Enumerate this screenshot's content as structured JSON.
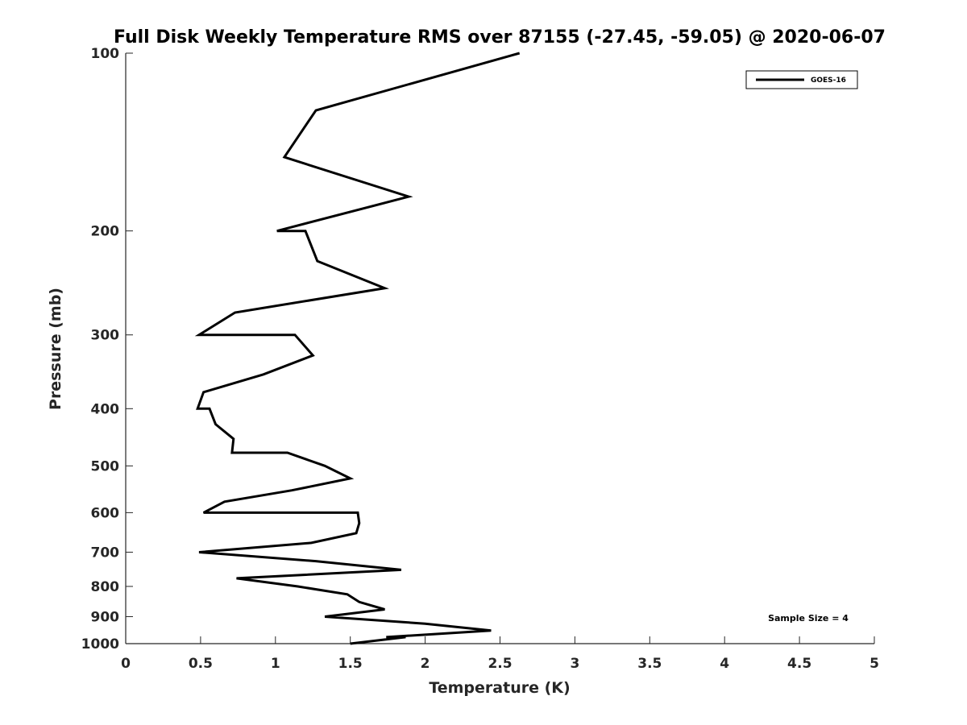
{
  "chart_data": {
    "type": "line",
    "title": "Full Disk Weekly Temperature RMS over 87155 (-27.45, -59.05) @ 2020-06-07",
    "xlabel": "Temperature (K)",
    "ylabel": "Pressure (mb)",
    "xlim": [
      0,
      5
    ],
    "ylim": [
      100,
      1000
    ],
    "y_scale": "log",
    "y_reversed": true,
    "x_ticks": [
      "0",
      "0.5",
      "1",
      "1.5",
      "2",
      "2.5",
      "3",
      "3.5",
      "4",
      "4.5",
      "5"
    ],
    "x_tick_values": [
      0,
      0.5,
      1,
      1.5,
      2,
      2.5,
      3,
      3.5,
      4,
      4.5,
      5
    ],
    "y_ticks": [
      "100",
      "200",
      "300",
      "400",
      "500",
      "600",
      "700",
      "800",
      "900",
      "1000"
    ],
    "y_tick_values": [
      100,
      200,
      300,
      400,
      500,
      600,
      700,
      800,
      900,
      1000
    ],
    "grid": false,
    "legend_position": "top-right",
    "annotation": "Sample Size = 4",
    "series": [
      {
        "name": "GOES-16",
        "color": "#000000",
        "points": [
          [
            2.63,
            100
          ],
          [
            1.27,
            125
          ],
          [
            1.06,
            150
          ],
          [
            1.89,
            175
          ],
          [
            1.01,
            200
          ],
          [
            1.2,
            200
          ],
          [
            1.28,
            225
          ],
          [
            1.73,
            250
          ],
          [
            0.73,
            275
          ],
          [
            0.49,
            300
          ],
          [
            1.13,
            300
          ],
          [
            1.25,
            325
          ],
          [
            0.92,
            350
          ],
          [
            0.52,
            375
          ],
          [
            0.48,
            400
          ],
          [
            0.56,
            400
          ],
          [
            0.6,
            425
          ],
          [
            0.72,
            450
          ],
          [
            0.71,
            475
          ],
          [
            1.08,
            475
          ],
          [
            1.33,
            500
          ],
          [
            1.5,
            525
          ],
          [
            1.11,
            550
          ],
          [
            0.66,
            575
          ],
          [
            0.52,
            600
          ],
          [
            1.55,
            600
          ],
          [
            1.56,
            625
          ],
          [
            1.54,
            650
          ],
          [
            1.24,
            675
          ],
          [
            0.49,
            700
          ],
          [
            0.49,
            700
          ],
          [
            1.27,
            725
          ],
          [
            1.84,
            750
          ],
          [
            0.74,
            775
          ],
          [
            1.15,
            800
          ],
          [
            1.48,
            825
          ],
          [
            1.56,
            850
          ],
          [
            1.73,
            875
          ],
          [
            1.33,
            900
          ],
          [
            2.0,
            925
          ],
          [
            2.44,
            950
          ],
          [
            1.74,
            975
          ],
          [
            1.87,
            975
          ],
          [
            1.5,
            1000
          ]
        ]
      }
    ]
  }
}
